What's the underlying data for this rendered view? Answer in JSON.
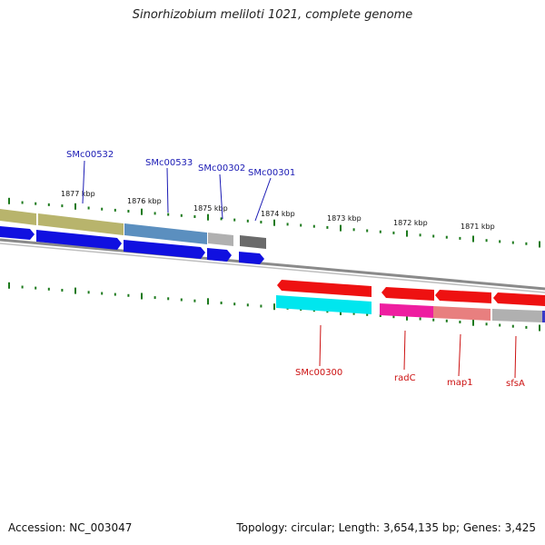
{
  "title": "Sinorhizobium meliloti 1021, complete genome",
  "footer": {
    "accession": "Accession: NC_003047",
    "summary": "Topology: circular; Length: 3,654,135 bp; Genes: 3,425"
  },
  "colors": {
    "upper_label": "#1a1ab4",
    "lower_label": "#cc1111",
    "tick": "#1d7a1d",
    "backbone": "#8a8a8a"
  },
  "axis": {
    "tick_labels": [
      "1877 kbp",
      "1876 kbp",
      "1875 kbp",
      "1874 kbp",
      "1873 kbp",
      "1872 kbp",
      "1871 kbp"
    ]
  },
  "upper_genes": [
    {
      "label": "SMc00532"
    },
    {
      "label": "SMc00533"
    },
    {
      "label": "SMc00302"
    },
    {
      "label": "SMc00301"
    }
  ],
  "lower_genes": [
    {
      "label": "SMc00300"
    },
    {
      "label": "radC"
    },
    {
      "label": "map1"
    },
    {
      "label": "sfsA"
    }
  ]
}
